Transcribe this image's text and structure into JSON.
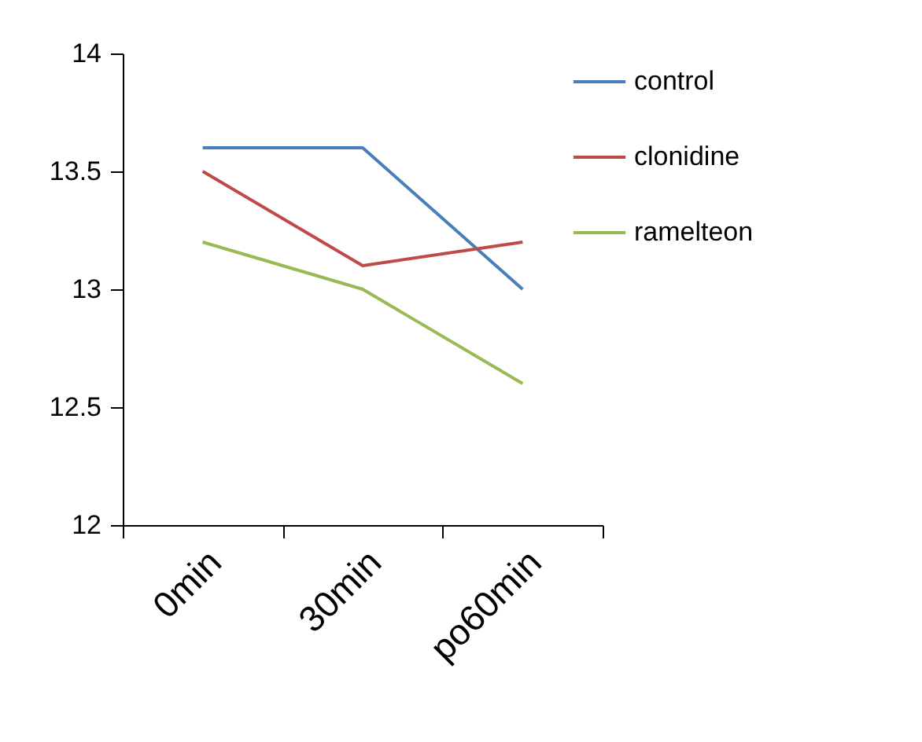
{
  "chart_data": {
    "type": "line",
    "categories": [
      "0min",
      "30min",
      "po60min"
    ],
    "series": [
      {
        "name": "control",
        "color": "#4a7ebb",
        "values": [
          13.6,
          13.6,
          13.0
        ]
      },
      {
        "name": "clonidine",
        "color": "#be4b48",
        "values": [
          13.5,
          13.1,
          13.2
        ]
      },
      {
        "name": "ramelteon",
        "color": "#98b954",
        "values": [
          13.2,
          13.0,
          12.6
        ]
      }
    ],
    "ylim": [
      12,
      14
    ],
    "yticks": [
      12,
      12.5,
      13,
      13.5,
      14
    ],
    "grid": false,
    "legend": "right",
    "marker": "none",
    "line_style": "solid"
  }
}
